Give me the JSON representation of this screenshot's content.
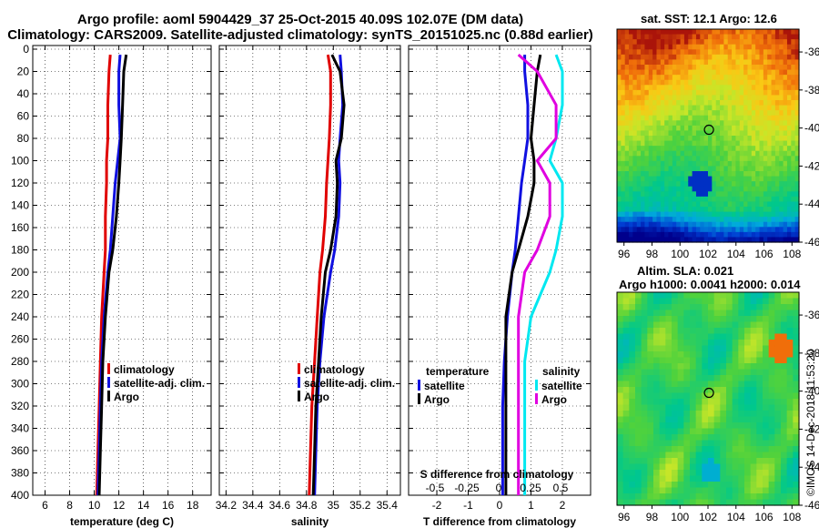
{
  "title": {
    "line1": "Argo profile: aoml 5904429_37 25-Oct-2015 40.09S 102.07E (DM data)",
    "line2": "Climatology: CARS2009. Satellite-adjusted climatology: synTS_20151025.nc (0.88d earlier)"
  },
  "colors": {
    "climatology": "#e00000",
    "satellite": "#1010e0",
    "argo": "#000000",
    "sat_salinity": "#00e8f0",
    "argo_salinity": "#e000e0"
  },
  "chart_data": [
    {
      "type": "line",
      "title": "",
      "xlabel": "temperature (deg C)",
      "ylabel": "",
      "xlim": [
        5,
        19.5
      ],
      "ylim": [
        400,
        0
      ],
      "xticks": [
        "6",
        "8",
        "10",
        "12",
        "14",
        "16",
        "18"
      ],
      "yticks": [
        "0",
        "20",
        "40",
        "60",
        "80",
        "100",
        "120",
        "140",
        "160",
        "180",
        "200",
        "220",
        "240",
        "260",
        "280",
        "300",
        "320",
        "340",
        "360",
        "380",
        "400"
      ],
      "depth": [
        5,
        20,
        50,
        80,
        100,
        120,
        150,
        180,
        200,
        240,
        280,
        320,
        360,
        400
      ],
      "series": [
        {
          "name": "climatology",
          "values": [
            11.3,
            11.2,
            11.1,
            11.1,
            11.0,
            11.0,
            10.9,
            10.9,
            10.8,
            10.6,
            10.5,
            10.4,
            10.3,
            10.2
          ]
        },
        {
          "name": "satellite-adj. clim.",
          "values": [
            12.1,
            12.0,
            12.0,
            12.1,
            11.9,
            11.7,
            11.5,
            11.3,
            11.1,
            10.8,
            10.6,
            10.5,
            10.4,
            10.3
          ]
        },
        {
          "name": "Argo",
          "values": [
            12.6,
            12.4,
            12.3,
            12.2,
            12.1,
            12.0,
            11.8,
            11.5,
            11.2,
            10.9,
            10.7,
            10.6,
            10.5,
            10.4
          ]
        }
      ],
      "legend": [
        "climatology",
        "satellite-adj. clim.",
        "Argo"
      ]
    },
    {
      "type": "line",
      "xlabel": "salinity",
      "xlim": [
        34.15,
        35.5
      ],
      "ylim": [
        400,
        0
      ],
      "xticks": [
        "34.2",
        "34.4",
        "34.6",
        "34.8",
        "35",
        "35.2",
        "35.4"
      ],
      "depth": [
        5,
        20,
        50,
        80,
        100,
        120,
        150,
        180,
        200,
        240,
        280,
        320,
        360,
        400
      ],
      "series": [
        {
          "name": "climatology",
          "values": [
            34.96,
            34.98,
            34.98,
            34.97,
            34.96,
            34.95,
            34.94,
            34.92,
            34.9,
            34.88,
            34.86,
            34.84,
            34.83,
            34.82
          ]
        },
        {
          "name": "satellite-adj. clim.",
          "values": [
            35.05,
            35.06,
            35.07,
            35.05,
            35.04,
            35.05,
            35.04,
            35.01,
            34.98,
            34.93,
            34.9,
            34.88,
            34.87,
            34.86
          ]
        },
        {
          "name": "Argo",
          "values": [
            34.99,
            35.05,
            35.08,
            35.06,
            35.02,
            35.03,
            35.02,
            34.98,
            34.94,
            34.91,
            34.89,
            34.87,
            34.86,
            34.85
          ]
        }
      ],
      "legend": [
        "climatology",
        "satellite-adj. clim.",
        "Argo"
      ]
    },
    {
      "type": "line",
      "xlabel": "T difference from climatology",
      "x2label": "S difference from climatology",
      "xlim": [
        -2.9,
        2.9
      ],
      "ylim": [
        400,
        0
      ],
      "xticks": [
        "-2",
        "-1",
        "0",
        "1",
        "2"
      ],
      "x2ticks": [
        "-0.5",
        "-0.25",
        "0",
        "0.25",
        "0.5"
      ],
      "depth": [
        5,
        20,
        50,
        80,
        100,
        120,
        150,
        180,
        200,
        240,
        280,
        320,
        360,
        400
      ],
      "series": [
        {
          "name": "temperature satellite",
          "values": [
            0.8,
            0.8,
            0.9,
            0.9,
            0.8,
            0.7,
            0.6,
            0.5,
            0.4,
            0.25,
            0.15,
            0.1,
            0.1,
            0.1
          ]
        },
        {
          "name": "temperature Argo",
          "values": [
            1.3,
            1.2,
            1.1,
            1.0,
            1.1,
            1.1,
            0.9,
            0.6,
            0.4,
            0.2,
            0.2,
            0.2,
            0.2,
            0.2
          ]
        },
        {
          "name": "salinity satellite",
          "values": [
            0.45,
            0.5,
            0.5,
            0.45,
            0.4,
            0.5,
            0.5,
            0.45,
            0.4,
            0.25,
            0.2,
            0.2,
            0.2,
            0.2
          ]
        },
        {
          "name": "salinity Argo",
          "values": [
            0.15,
            0.3,
            0.45,
            0.45,
            0.3,
            0.4,
            0.4,
            0.3,
            0.2,
            0.15,
            0.15,
            0.15,
            0.15,
            0.15
          ]
        }
      ],
      "legend_left_title": "temperature",
      "legend_right_title": "salinity",
      "legend_left": [
        "satellite",
        "Argo"
      ],
      "legend_right": [
        "satellite",
        "Argo"
      ]
    },
    {
      "type": "heatmap",
      "title": "sat. SST: 12.1 Argo: 12.6",
      "xticks": [
        "96",
        "98",
        "100",
        "102",
        "104",
        "106",
        "108"
      ],
      "yticks": [
        "-36",
        "-38",
        "-40",
        "-42",
        "-44",
        "-46"
      ],
      "xlim": [
        95.5,
        108.5
      ],
      "ylim": [
        -46,
        -34.8
      ],
      "marker": {
        "lon": 102.07,
        "lat": -40.09
      }
    },
    {
      "type": "heatmap",
      "title_line1": "Altim. SLA: 0.021",
      "title_line2": "Argo h1000: 0.0041 h2000: 0.014",
      "xticks": [
        "96",
        "98",
        "100",
        "102",
        "104",
        "106",
        "108"
      ],
      "yticks": [
        "-36",
        "-38",
        "-40",
        "-42",
        "-44",
        "-46"
      ],
      "xlim": [
        95.5,
        108.5
      ],
      "ylim": [
        -46,
        -34.8
      ],
      "marker": {
        "lon": 102.07,
        "lat": -40.09
      }
    }
  ],
  "credit": "©IMOS 14-Dec-2018 11:53:20"
}
